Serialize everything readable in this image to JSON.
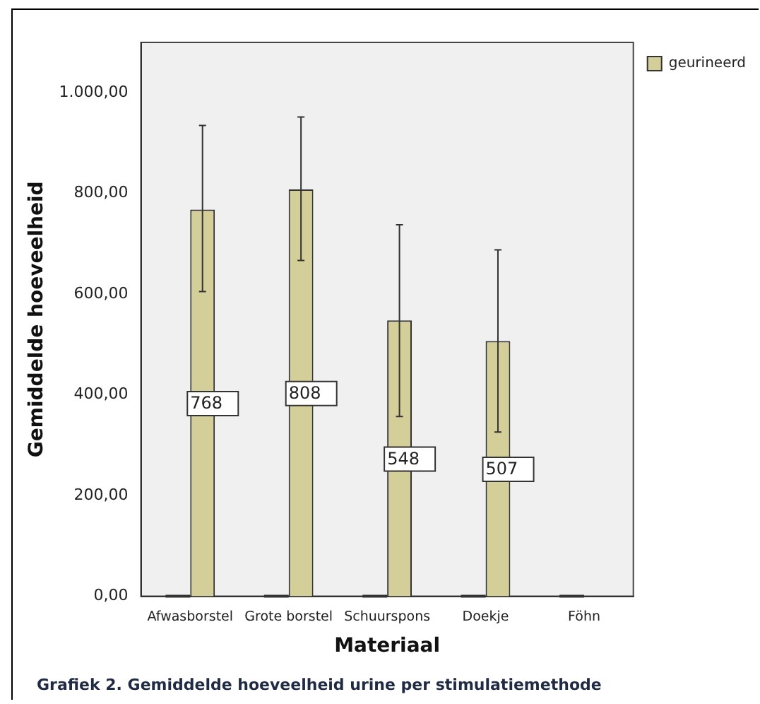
{
  "chart_data": {
    "type": "bar",
    "xlabel": "Materiaal",
    "ylabel": "Gemiddelde hoeveelheid",
    "categories": [
      "Afwasborstel",
      "Grote borstel",
      "Schuurspons",
      "Doekje",
      "Föhn"
    ],
    "series": [
      {
        "color": "#d4cf99",
        "values": [
          0,
          0,
          0,
          0,
          0
        ]
      },
      {
        "name": "geurineerd",
        "color": "#d4cf99",
        "values": [
          768,
          808,
          548,
          507,
          null
        ],
        "value_labels": [
          "768",
          "808",
          "548",
          "507",
          null
        ],
        "errors": [
          [
            605,
            935
          ],
          [
            667,
            952
          ],
          [
            357,
            738
          ],
          [
            326,
            688
          ],
          null
        ]
      }
    ],
    "ylim": [
      0,
      1100
    ],
    "yticks": [
      {
        "value": 0,
        "label": "0,00"
      },
      {
        "value": 200,
        "label": "200,00"
      },
      {
        "value": 400,
        "label": "400,00"
      },
      {
        "value": 600,
        "label": "600,00"
      },
      {
        "value": 800,
        "label": "800,00"
      },
      {
        "value": 1000,
        "label": "1.000,00"
      }
    ],
    "grid": false,
    "legend": "top right",
    "annotations": [
      "Grafiek 2. Gemiddelde hoeveelheid urine per stimulatiemethode"
    ]
  }
}
